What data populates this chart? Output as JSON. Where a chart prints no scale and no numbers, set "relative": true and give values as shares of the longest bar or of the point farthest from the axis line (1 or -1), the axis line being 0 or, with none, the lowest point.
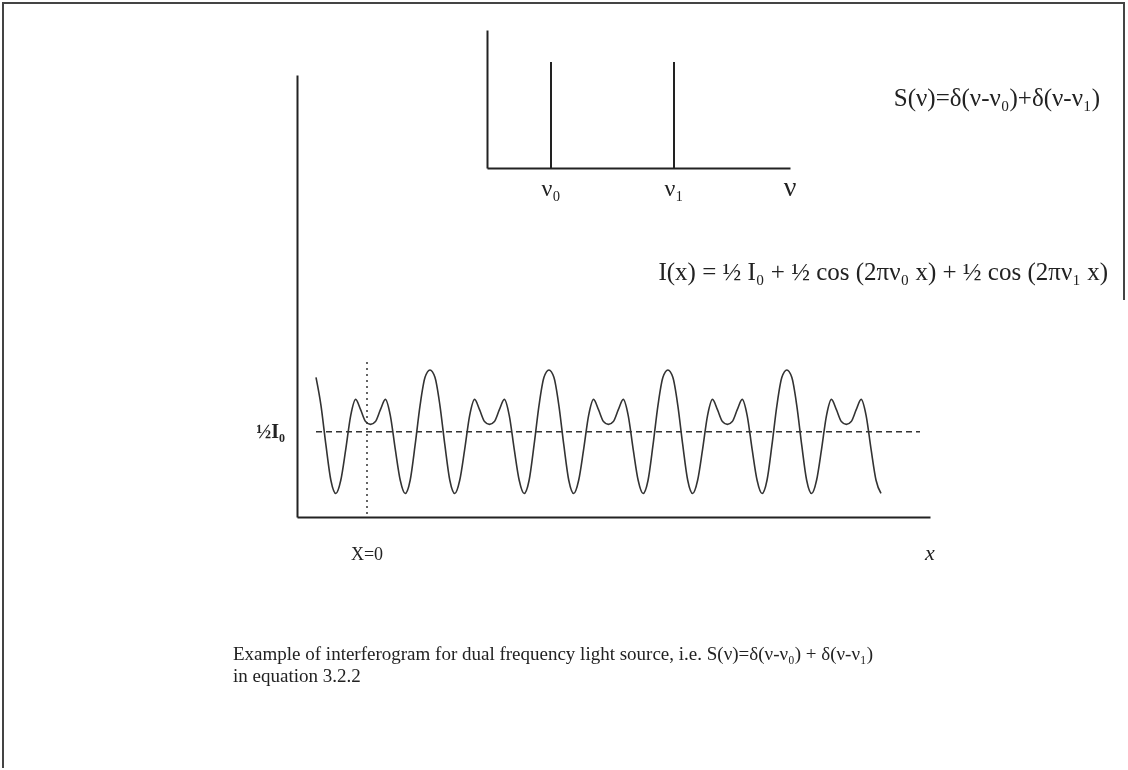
{
  "chart_data": [
    {
      "type": "bar",
      "relative": true,
      "categories": [
        "ν₀",
        "ν₁"
      ],
      "values": [
        1,
        1
      ],
      "color": "#222222",
      "xlabel": "ν",
      "annotations": [
        "S(ν)=δ(ν-ν₀)+δ(ν-ν₁)"
      ]
    },
    {
      "type": "line",
      "relative": true,
      "title": "I(x) = ½ I₀ + ½ cos (2πν₀ x) + ½ cos (2πν₁ x)",
      "xlabel": "x",
      "color": "#333333",
      "categories": [
        null,
        null,
        null,
        null,
        null,
        null,
        null,
        null,
        null,
        null,
        null,
        null,
        null,
        null,
        null,
        null,
        null,
        null,
        null,
        null,
        null,
        null,
        null,
        null,
        null,
        null,
        null,
        null,
        null,
        null,
        null,
        null,
        null,
        null,
        null,
        null,
        null,
        null,
        null,
        null,
        null,
        null,
        null,
        null,
        null,
        null,
        null,
        null,
        null,
        null,
        null,
        null,
        null,
        null,
        null,
        null,
        null,
        null,
        null,
        null,
        null,
        null,
        null,
        null,
        null,
        null,
        null,
        null,
        null,
        null,
        null,
        null,
        null,
        null,
        null,
        null,
        null,
        null,
        null,
        null,
        null,
        null,
        null,
        null,
        null,
        null,
        null,
        null,
        null,
        null,
        null,
        null,
        null,
        null,
        null,
        null,
        null,
        null,
        null,
        null,
        null,
        null,
        null,
        null,
        null,
        null,
        null,
        null,
        null,
        null,
        null,
        null,
        null,
        null,
        null
      ],
      "values": [
        0.95,
        0.76,
        0.49,
        0.25,
        0.16,
        0.25,
        0.46,
        0.69,
        0.8,
        0.73,
        0.65,
        0.63,
        0.65,
        0.73,
        0.8,
        0.69,
        0.46,
        0.25,
        0.16,
        0.25,
        0.49,
        0.76,
        0.95,
        1.0,
        0.95,
        0.76,
        0.49,
        0.25,
        0.16,
        0.25,
        0.46,
        0.69,
        0.8,
        0.73,
        0.65,
        0.63,
        0.65,
        0.73,
        0.8,
        0.69,
        0.46,
        0.25,
        0.16,
        0.25,
        0.49,
        0.76,
        0.95,
        1.0,
        0.95,
        0.76,
        0.49,
        0.25,
        0.16,
        0.25,
        0.46,
        0.69,
        0.8,
        0.73,
        0.65,
        0.63,
        0.65,
        0.73,
        0.8,
        0.69,
        0.46,
        0.25,
        0.16,
        0.25,
        0.49,
        0.76,
        0.95,
        1.0,
        0.95,
        0.76,
        0.49,
        0.25,
        0.16,
        0.25,
        0.46,
        0.69,
        0.8,
        0.73,
        0.65,
        0.63,
        0.65,
        0.73,
        0.8,
        0.69,
        0.46,
        0.25,
        0.16,
        0.25,
        0.49,
        0.76,
        0.95,
        1.0,
        0.95,
        0.76,
        0.49,
        0.25,
        0.16,
        0.25,
        0.46,
        0.69,
        0.8,
        0.73,
        0.65,
        0.63,
        0.65,
        0.73,
        0.8,
        0.69,
        0.46,
        0.25,
        0.16
      ],
      "ref_lines": [
        {
          "axis": "y",
          "value": 0.58,
          "label": "½I₀",
          "line_style": "dashed"
        },
        {
          "axis": "x",
          "label": "X=0",
          "line_style": "dotted"
        }
      ],
      "annotations": [
        "Example of interferogram for dual frequency light source, i.e. S(ν)=δ(ν-ν₀) + δ(ν-ν₁) in equation 3.2.2"
      ]
    }
  ]
}
